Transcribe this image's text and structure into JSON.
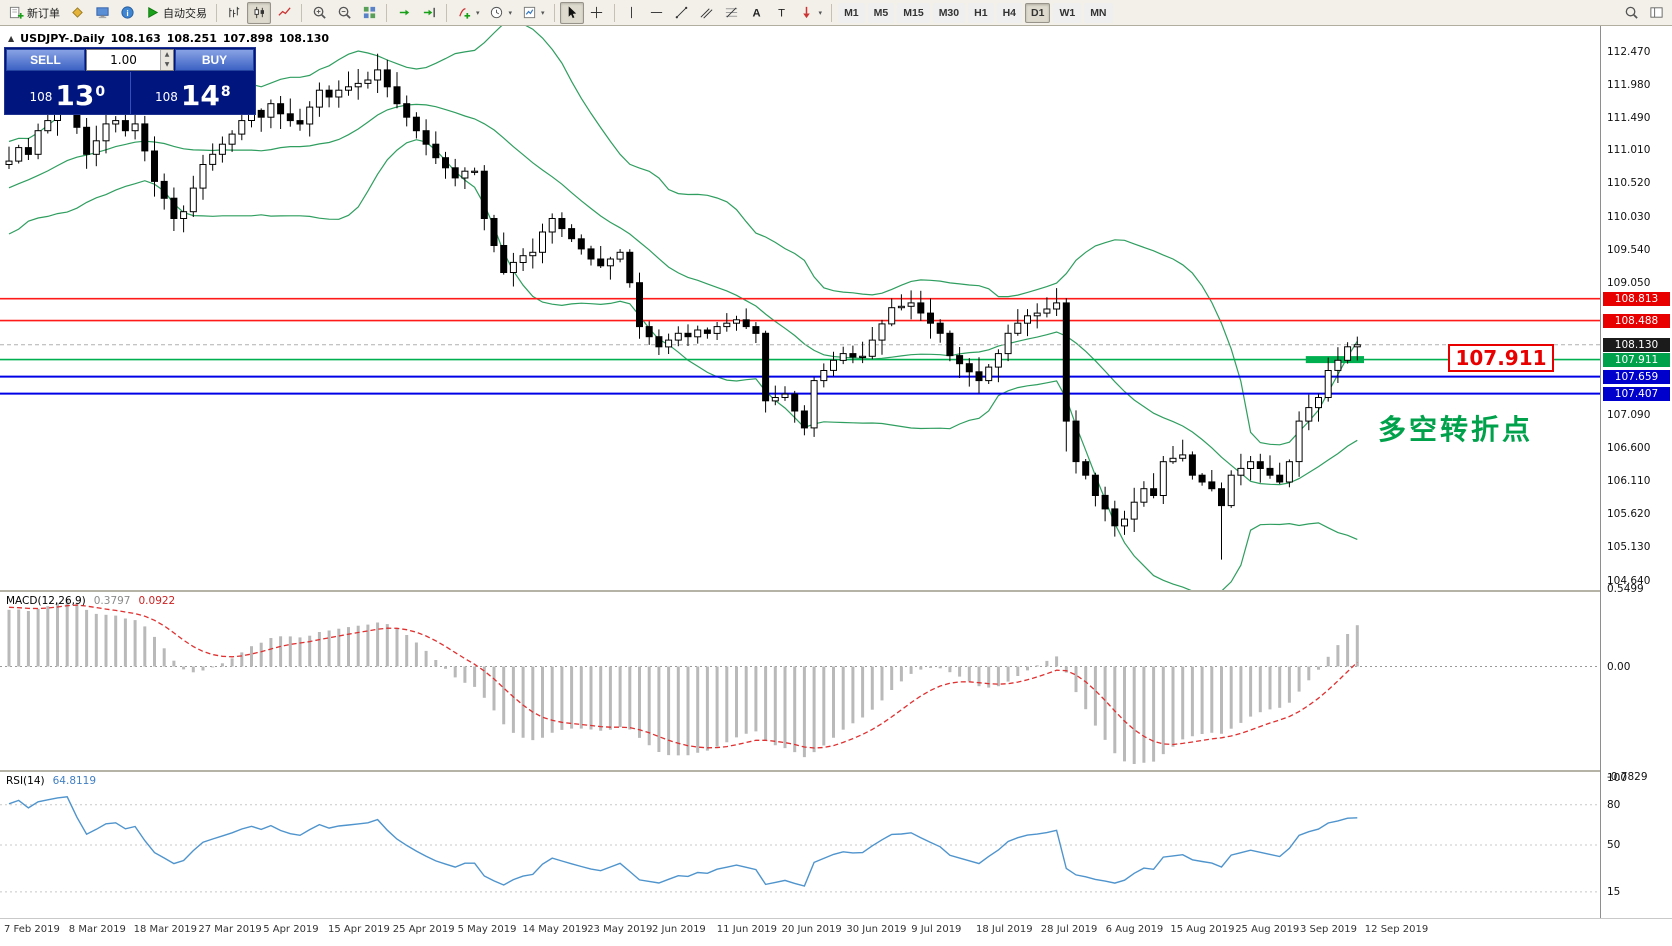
{
  "toolbar": {
    "items": [
      {
        "icon": "new-order",
        "label": "新订单",
        "name": "new-order-button"
      },
      {
        "icon": "profiles",
        "name": "profiles-button"
      },
      {
        "icon": "terminal",
        "name": "terminal-button"
      },
      {
        "icon": "news",
        "name": "news-button"
      },
      {
        "icon": "autotrade",
        "label": "自动交易",
        "name": "autotrading-button"
      },
      {
        "sep": true
      },
      {
        "icon": "bar-chart",
        "name": "bar-chart-button"
      },
      {
        "icon": "candle-chart",
        "name": "candlestick-chart-button",
        "pressed": true
      },
      {
        "icon": "line-chart",
        "name": "line-chart-button"
      },
      {
        "sep": true
      },
      {
        "icon": "zoom-in",
        "name": "zoom-in-button"
      },
      {
        "icon": "zoom-out",
        "name": "zoom-out-button"
      },
      {
        "icon": "tile",
        "name": "tile-windows-button"
      },
      {
        "sep": true
      },
      {
        "icon": "auto-scroll",
        "name": "auto-scroll-button"
      },
      {
        "icon": "chart-shift",
        "name": "chart-shift-button"
      },
      {
        "sep": true
      },
      {
        "icon": "indicators",
        "name": "indicators-button",
        "caret": true
      },
      {
        "icon": "periods",
        "name": "periods-button",
        "caret": true
      },
      {
        "icon": "templates",
        "name": "templates-button",
        "caret": true
      },
      {
        "sep": true
      },
      {
        "icon": "cursor",
        "name": "cursor-button",
        "pressed": true
      },
      {
        "icon": "crosshair",
        "name": "crosshair-button"
      },
      {
        "sep": true
      },
      {
        "icon": "vline",
        "name": "vertical-line-button"
      },
      {
        "icon": "hline",
        "name": "horizontal-line-button"
      },
      {
        "icon": "trendline",
        "name": "trendline-button"
      },
      {
        "icon": "channel",
        "name": "channel-button"
      },
      {
        "icon": "fibo",
        "name": "fibonacci-button"
      },
      {
        "icon": "text-a",
        "name": "text-button"
      },
      {
        "icon": "label-t",
        "name": "text-label-button"
      },
      {
        "icon": "arrows",
        "name": "arrows-button",
        "caret": true
      }
    ],
    "timeframes": [
      "M1",
      "M5",
      "M15",
      "M30",
      "H1",
      "H4",
      "D1",
      "W1",
      "MN"
    ],
    "active_timeframe": "D1",
    "right_items": [
      {
        "icon": "search",
        "name": "search-button"
      },
      {
        "icon": "panels",
        "name": "toggle-panels-button"
      }
    ]
  },
  "chart_header": {
    "collapse_icon": "▲",
    "symbol_period": "USDJPY-.Daily",
    "open": "108.163",
    "high": "108.251",
    "low": "107.898",
    "close": "108.130"
  },
  "trade_panel": {
    "sell_label": "SELL",
    "buy_label": "BUY",
    "volume": "1.00",
    "sell_price_prefix": "108",
    "sell_price_big": "13",
    "sell_price_sup": "0",
    "buy_price_prefix": "108",
    "buy_price_big": "14",
    "buy_price_sup": "8"
  },
  "price_axis": {
    "ticks": [
      112.47,
      111.98,
      111.49,
      111.01,
      110.52,
      110.03,
      109.54,
      109.05,
      107.09,
      106.6,
      106.11,
      105.62,
      105.13,
      104.64
    ]
  },
  "price_levels": [
    {
      "name": "resistance-line-1",
      "price": 108.813,
      "color": "#ff1a1a",
      "width": 1.6,
      "dash": "",
      "badge": "108.813",
      "badge_bg": "#e80000"
    },
    {
      "name": "resistance-line-2",
      "price": 108.488,
      "color": "#ff1a1a",
      "width": 1.6,
      "dash": "",
      "badge": "108.488",
      "badge_bg": "#e80000"
    },
    {
      "name": "current-price-line",
      "price": 108.13,
      "color": "#b0b0b0",
      "width": 1,
      "dash": "4,3",
      "badge": "108.130",
      "badge_bg": "#1b1b1b"
    },
    {
      "name": "pivot-line",
      "price": 107.911,
      "color": "#00b050",
      "width": 1.6,
      "dash": "",
      "badge": "107.911",
      "badge_bg": "#00a14b"
    },
    {
      "name": "support-line-1",
      "price": 107.659,
      "color": "#0000e6",
      "width": 2,
      "dash": "",
      "badge": "107.659",
      "badge_bg": "#0000cc"
    },
    {
      "name": "support-line-2",
      "price": 107.407,
      "color": "#0000e6",
      "width": 2,
      "dash": "",
      "badge": "107.407",
      "badge_bg": "#0000cc"
    }
  ],
  "pivot_segment": {
    "price": 107.911,
    "from_index": 134,
    "to_index": 140,
    "color": "#00b050",
    "thickness": 7
  },
  "annotation": {
    "text": "多空转折点",
    "color": "#00a14b"
  },
  "callout": {
    "text": "107.911",
    "color": "#e80000"
  },
  "macd_panel": {
    "label": "MACD(12,26,9)",
    "main": "0.3797",
    "signal": "0.0922",
    "max": 0.5499,
    "min": -0.7829,
    "axis": [
      {
        "text": "0.5499",
        "v": 0.5499
      },
      {
        "text": "0.00",
        "v": 0
      },
      {
        "text": "-0.7829",
        "v": -0.7829
      }
    ]
  },
  "rsi_panel": {
    "label": "RSI(14)",
    "value": "64.8119",
    "axis": [
      {
        "text": "100",
        "v": 100
      },
      {
        "text": "80",
        "v": 80
      },
      {
        "text": "50",
        "v": 50
      },
      {
        "text": "15",
        "v": 15
      }
    ],
    "levels": [
      80,
      50,
      15
    ]
  },
  "time_axis": [
    "7 Feb 2019",
    "8 Mar 2019",
    "18 Mar 2019",
    "27 Mar 2019",
    "5 Apr 2019",
    "15 Apr 2019",
    "25 Apr 2019",
    "5 May 2019",
    "14 May 2019",
    "23 May 2019",
    "2 Jun 2019",
    "11 Jun 2019",
    "20 Jun 2019",
    "30 Jun 2019",
    "9 Jul 2019",
    "18 Jul 2019",
    "28 Jul 2019",
    "6 Aug 2019",
    "15 Aug 2019",
    "25 Aug 2019",
    "3 Sep 2019",
    "12 Sep 2019"
  ],
  "chart_data": {
    "type": "candlestick",
    "symbol": "USDJPY-",
    "timeframe": "Daily",
    "current_ohlc": {
      "open": 108.163,
      "high": 108.251,
      "low": 107.898,
      "close": 108.13
    },
    "ylim": [
      104.64,
      112.47
    ],
    "indicators": {
      "bollinger": [
        20,
        2
      ],
      "macd": [
        12,
        26,
        9
      ],
      "rsi": [
        14
      ]
    },
    "levels": {
      "resistance": [
        108.813,
        108.488
      ],
      "pivot": 107.911,
      "support": [
        107.659,
        107.407
      ],
      "current_bid": 108.13
    },
    "closes": [
      110.85,
      111.05,
      110.95,
      111.3,
      111.45,
      111.6,
      111.7,
      111.35,
      110.95,
      111.15,
      111.4,
      111.45,
      111.3,
      111.4,
      111.0,
      110.55,
      110.3,
      110.0,
      110.1,
      110.45,
      110.8,
      110.95,
      111.1,
      111.25,
      111.45,
      111.6,
      111.5,
      111.7,
      111.55,
      111.45,
      111.4,
      111.65,
      111.9,
      111.8,
      111.9,
      111.95,
      112.0,
      112.05,
      112.2,
      111.95,
      111.7,
      111.5,
      111.3,
      111.1,
      110.9,
      110.75,
      110.6,
      110.7,
      110.7,
      110.0,
      109.6,
      109.2,
      109.35,
      109.45,
      109.5,
      109.8,
      110.0,
      109.85,
      109.7,
      109.55,
      109.4,
      109.3,
      109.4,
      109.5,
      109.05,
      108.4,
      108.25,
      108.1,
      108.2,
      108.3,
      108.25,
      108.35,
      108.3,
      108.4,
      108.45,
      108.5,
      108.4,
      108.3,
      107.3,
      107.35,
      107.4,
      107.15,
      106.9,
      107.6,
      107.75,
      107.9,
      108.0,
      107.95,
      107.96,
      108.2,
      108.44,
      108.68,
      108.7,
      108.75,
      108.6,
      108.45,
      108.3,
      107.97,
      107.85,
      107.73,
      107.6,
      107.8,
      108.0,
      108.3,
      108.45,
      108.56,
      108.6,
      108.66,
      108.75,
      107.0,
      106.4,
      106.2,
      105.9,
      105.7,
      105.45,
      105.55,
      105.8,
      106.0,
      105.9,
      106.4,
      106.45,
      106.5,
      106.2,
      106.1,
      106.0,
      105.75,
      106.2,
      106.3,
      106.4,
      106.3,
      106.2,
      106.1,
      106.4,
      107.0,
      107.2,
      107.35,
      107.75,
      107.9,
      108.1,
      108.13
    ],
    "prehistory_closes": [
      108.6,
      108.8,
      109.0,
      108.9,
      109.1,
      109.3,
      109.25,
      109.45,
      109.6,
      109.5,
      109.7,
      109.85,
      109.8,
      110.0,
      110.1,
      110.05,
      110.2,
      110.35,
      110.3,
      110.45,
      110.55,
      110.5,
      110.65,
      110.75,
      110.7,
      110.8,
      110.75,
      110.85,
      110.8,
      110.8
    ],
    "wick_overrides": {
      "highs": {
        "38": 112.44,
        "139": 108.251
      },
      "lows": {
        "109": 106.55,
        "125": 104.95,
        "139": 107.898
      }
    }
  }
}
